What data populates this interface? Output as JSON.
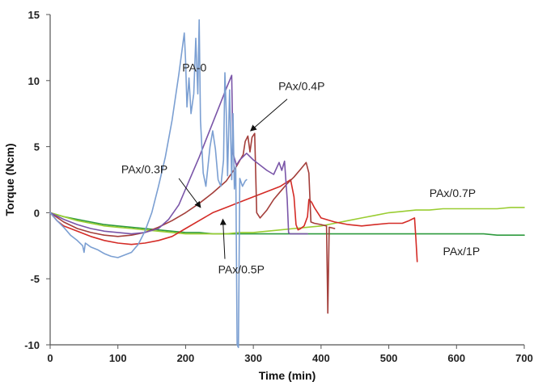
{
  "chart_data": {
    "type": "line",
    "title": "",
    "xlabel": "Time (min)",
    "ylabel": "Torque  (Ncm)",
    "xlim": [
      0,
      700
    ],
    "ylim": [
      -10,
      15
    ],
    "x_ticks": [
      0,
      100,
      200,
      300,
      400,
      500,
      600,
      700
    ],
    "y_ticks": [
      -10,
      -5,
      0,
      5,
      10,
      15
    ],
    "grid": false,
    "legend": "none (series labeled directly on plot)",
    "series": [
      {
        "name": "PA-0",
        "color": "#7b9fd2",
        "label_pos": [
          195,
          10.7
        ],
        "points": [
          [
            0,
            0
          ],
          [
            10,
            -0.6
          ],
          [
            20,
            -1.1
          ],
          [
            30,
            -1.7
          ],
          [
            40,
            -2.1
          ],
          [
            48,
            -2.5
          ],
          [
            50,
            -3.0
          ],
          [
            52,
            -2.3
          ],
          [
            60,
            -2.6
          ],
          [
            70,
            -2.8
          ],
          [
            80,
            -3.1
          ],
          [
            90,
            -3.3
          ],
          [
            100,
            -3.4
          ],
          [
            110,
            -3.2
          ],
          [
            120,
            -3.0
          ],
          [
            130,
            -2.4
          ],
          [
            140,
            -1.4
          ],
          [
            150,
            0.0
          ],
          [
            160,
            2.0
          ],
          [
            170,
            4.2
          ],
          [
            180,
            7.0
          ],
          [
            190,
            10.5
          ],
          [
            198,
            13.6
          ],
          [
            200,
            11.5
          ],
          [
            202,
            8.0
          ],
          [
            205,
            10.2
          ],
          [
            208,
            7.5
          ],
          [
            212,
            9.0
          ],
          [
            215,
            13.2
          ],
          [
            218,
            9.0
          ],
          [
            220,
            14.6
          ],
          [
            222,
            7.0
          ],
          [
            226,
            3.0
          ],
          [
            230,
            2.0
          ],
          [
            236,
            5.0
          ],
          [
            240,
            6.2
          ],
          [
            244,
            4.8
          ],
          [
            248,
            2.5
          ],
          [
            252,
            2.0
          ],
          [
            256,
            4.0
          ],
          [
            258,
            10.6
          ],
          [
            260,
            7.5
          ],
          [
            262,
            2.8
          ],
          [
            265,
            9.3
          ],
          [
            268,
            2.5
          ],
          [
            270,
            7.5
          ],
          [
            272,
            1.8
          ],
          [
            274,
            3.5
          ],
          [
            276,
            -10
          ],
          [
            278,
            -10.2
          ],
          [
            280,
            2.6
          ],
          [
            284,
            2.0
          ],
          [
            288,
            2.4
          ],
          [
            290,
            2.5
          ]
        ]
      },
      {
        "name": "PAx/0.3P",
        "color": "#7a55a8",
        "label_pos": [
          105,
          3.0
        ],
        "points": [
          [
            0,
            0
          ],
          [
            20,
            -0.5
          ],
          [
            40,
            -0.9
          ],
          [
            60,
            -1.2
          ],
          [
            80,
            -1.4
          ],
          [
            100,
            -1.5
          ],
          [
            120,
            -1.6
          ],
          [
            140,
            -1.5
          ],
          [
            160,
            -1.2
          ],
          [
            175,
            -0.5
          ],
          [
            190,
            0.6
          ],
          [
            200,
            1.8
          ],
          [
            210,
            3.0
          ],
          [
            220,
            4.2
          ],
          [
            230,
            5.5
          ],
          [
            240,
            6.8
          ],
          [
            250,
            8.1
          ],
          [
            260,
            9.4
          ],
          [
            268,
            10.4
          ],
          [
            270,
            4.5
          ],
          [
            275,
            3.6
          ],
          [
            280,
            4.0
          ],
          [
            290,
            4.5
          ],
          [
            300,
            4.0
          ],
          [
            310,
            3.6
          ],
          [
            320,
            3.2
          ],
          [
            330,
            2.9
          ],
          [
            338,
            3.8
          ],
          [
            342,
            3.2
          ],
          [
            346,
            3.9
          ],
          [
            350,
            1.0
          ],
          [
            352,
            -1.5
          ],
          [
            354,
            -1.6
          ],
          [
            360,
            -1.6
          ],
          [
            380,
            -1.6
          ]
        ]
      },
      {
        "name": "PAx/0.4P",
        "color": "#a33e3a",
        "label_pos": [
          337,
          9.3
        ],
        "points": [
          [
            0,
            0
          ],
          [
            20,
            -0.7
          ],
          [
            40,
            -1.2
          ],
          [
            60,
            -1.5
          ],
          [
            80,
            -1.7
          ],
          [
            100,
            -1.8
          ],
          [
            120,
            -1.7
          ],
          [
            140,
            -1.5
          ],
          [
            160,
            -1.1
          ],
          [
            180,
            -0.6
          ],
          [
            200,
            0.0
          ],
          [
            220,
            0.7
          ],
          [
            240,
            1.5
          ],
          [
            260,
            2.4
          ],
          [
            275,
            3.5
          ],
          [
            285,
            4.4
          ],
          [
            288,
            5.4
          ],
          [
            292,
            5.8
          ],
          [
            295,
            4.6
          ],
          [
            298,
            5.7
          ],
          [
            302,
            6.0
          ],
          [
            305,
            0.0
          ],
          [
            310,
            -0.4
          ],
          [
            320,
            0.2
          ],
          [
            330,
            1.0
          ],
          [
            340,
            1.6
          ],
          [
            350,
            2.2
          ],
          [
            360,
            2.7
          ],
          [
            370,
            3.3
          ],
          [
            378,
            3.8
          ],
          [
            382,
            3.0
          ],
          [
            385,
            -0.7
          ],
          [
            390,
            -0.8
          ],
          [
            400,
            -0.9
          ],
          [
            408,
            -1.0
          ],
          [
            410,
            -7.6
          ],
          [
            412,
            -1.1
          ],
          [
            420,
            -1.2
          ]
        ]
      },
      {
        "name": "PAx/0.5P",
        "color": "#d42b26",
        "label_pos": [
          248,
          -4.6
        ],
        "points": [
          [
            0,
            0
          ],
          [
            10,
            -0.6
          ],
          [
            20,
            -1.0
          ],
          [
            40,
            -1.4
          ],
          [
            60,
            -1.8
          ],
          [
            80,
            -2.1
          ],
          [
            100,
            -2.3
          ],
          [
            120,
            -2.4
          ],
          [
            140,
            -2.3
          ],
          [
            160,
            -2.1
          ],
          [
            180,
            -1.8
          ],
          [
            200,
            -1.2
          ],
          [
            220,
            -0.6
          ],
          [
            240,
            0.0
          ],
          [
            260,
            0.4
          ],
          [
            280,
            0.8
          ],
          [
            300,
            1.2
          ],
          [
            320,
            1.6
          ],
          [
            340,
            2.0
          ],
          [
            355,
            2.5
          ],
          [
            360,
            1.2
          ],
          [
            363,
            -0.9
          ],
          [
            366,
            -1.3
          ],
          [
            370,
            -1.2
          ],
          [
            375,
            -1.0
          ],
          [
            380,
            -0.3
          ],
          [
            382,
            1.0
          ],
          [
            386,
            0.8
          ],
          [
            390,
            0.4
          ],
          [
            400,
            -0.4
          ],
          [
            420,
            -0.7
          ],
          [
            440,
            -0.9
          ],
          [
            460,
            -1.0
          ],
          [
            480,
            -0.9
          ],
          [
            500,
            -0.8
          ],
          [
            520,
            -0.8
          ],
          [
            530,
            -0.6
          ],
          [
            538,
            -0.4
          ],
          [
            540,
            -2.0
          ],
          [
            542,
            -3.7
          ]
        ]
      },
      {
        "name": "PAx/0.7P",
        "color": "#9acd32",
        "label_pos": [
          560,
          1.2
        ],
        "points": [
          [
            0,
            0
          ],
          [
            20,
            -0.3
          ],
          [
            40,
            -0.6
          ],
          [
            60,
            -0.8
          ],
          [
            80,
            -1.0
          ],
          [
            100,
            -1.1
          ],
          [
            120,
            -1.2
          ],
          [
            140,
            -1.3
          ],
          [
            160,
            -1.4
          ],
          [
            180,
            -1.5
          ],
          [
            200,
            -1.6
          ],
          [
            220,
            -1.6
          ],
          [
            240,
            -1.6
          ],
          [
            260,
            -1.6
          ],
          [
            280,
            -1.5
          ],
          [
            300,
            -1.5
          ],
          [
            320,
            -1.4
          ],
          [
            340,
            -1.3
          ],
          [
            360,
            -1.2
          ],
          [
            380,
            -1.1
          ],
          [
            400,
            -1.0
          ],
          [
            420,
            -0.8
          ],
          [
            440,
            -0.6
          ],
          [
            460,
            -0.4
          ],
          [
            480,
            -0.2
          ],
          [
            500,
            0.0
          ],
          [
            520,
            0.1
          ],
          [
            540,
            0.2
          ],
          [
            560,
            0.2
          ],
          [
            580,
            0.3
          ],
          [
            600,
            0.3
          ],
          [
            620,
            0.3
          ],
          [
            640,
            0.3
          ],
          [
            660,
            0.3
          ],
          [
            680,
            0.4
          ],
          [
            700,
            0.4
          ]
        ]
      },
      {
        "name": "PAx/1P",
        "color": "#2e9a3e",
        "label_pos": [
          580,
          -3.2
        ],
        "points": [
          [
            0,
            0
          ],
          [
            20,
            -0.3
          ],
          [
            40,
            -0.5
          ],
          [
            60,
            -0.7
          ],
          [
            80,
            -0.9
          ],
          [
            100,
            -1.0
          ],
          [
            120,
            -1.1
          ],
          [
            140,
            -1.2
          ],
          [
            160,
            -1.3
          ],
          [
            180,
            -1.4
          ],
          [
            200,
            -1.5
          ],
          [
            220,
            -1.5
          ],
          [
            240,
            -1.6
          ],
          [
            260,
            -1.6
          ],
          [
            280,
            -1.6
          ],
          [
            300,
            -1.6
          ],
          [
            320,
            -1.6
          ],
          [
            340,
            -1.6
          ],
          [
            360,
            -1.6
          ],
          [
            380,
            -1.6
          ],
          [
            400,
            -1.6
          ],
          [
            420,
            -1.6
          ],
          [
            440,
            -1.6
          ],
          [
            460,
            -1.6
          ],
          [
            480,
            -1.6
          ],
          [
            500,
            -1.6
          ],
          [
            520,
            -1.6
          ],
          [
            540,
            -1.6
          ],
          [
            560,
            -1.6
          ],
          [
            580,
            -1.6
          ],
          [
            600,
            -1.6
          ],
          [
            620,
            -1.6
          ],
          [
            640,
            -1.6
          ],
          [
            660,
            -1.7
          ],
          [
            680,
            -1.7
          ],
          [
            700,
            -1.7
          ]
        ]
      }
    ],
    "annotations": [
      {
        "label": "PAx/0.3P",
        "arrow_from": [
          190,
          2.6
        ],
        "arrow_to": [
          222,
          0.4
        ]
      },
      {
        "label": "PAx/0.4P",
        "arrow_from": [
          350,
          8.6
        ],
        "arrow_to": [
          296,
          6.2
        ]
      },
      {
        "label": "PAx/0.5P",
        "arrow_from": [
          258,
          -3.5
        ],
        "arrow_to": [
          255,
          -0.5
        ]
      }
    ]
  }
}
